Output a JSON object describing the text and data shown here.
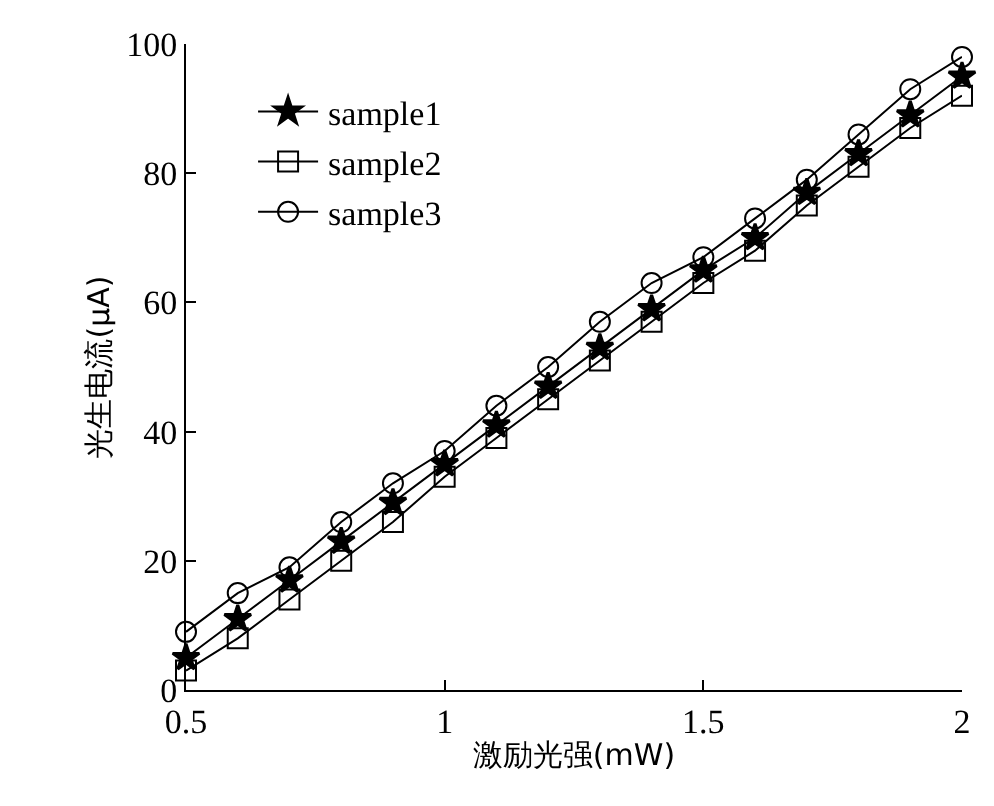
{
  "chart_data": {
    "type": "line",
    "xlabel": "激励光强(mW)",
    "ylabel": "光生电流(μA)",
    "x": [
      0.5,
      0.6,
      0.7,
      0.8,
      0.9,
      1.0,
      1.1,
      1.2,
      1.3,
      1.4,
      1.5,
      1.6,
      1.7,
      1.8,
      1.9,
      2.0
    ],
    "xlim": [
      0.5,
      2
    ],
    "xticks": [
      0.5,
      1,
      1.5,
      2
    ],
    "ylim": [
      0,
      100
    ],
    "yticks": [
      0,
      20,
      40,
      60,
      80,
      100
    ],
    "legend": "top left",
    "line_style": "solid",
    "series": [
      {
        "name": "sample1",
        "color": "#000000",
        "marker": "star",
        "values": [
          5,
          11,
          17,
          23,
          29,
          35,
          41,
          47,
          53,
          59,
          65,
          70,
          77,
          83,
          89,
          95
        ]
      },
      {
        "name": "sample2",
        "color": "#000000",
        "marker": "square",
        "values": [
          3,
          8,
          14,
          20,
          26,
          33,
          39,
          45,
          51,
          57,
          63,
          68,
          75,
          81,
          87,
          92
        ]
      },
      {
        "name": "sample3",
        "color": "#000000",
        "marker": "circle",
        "values": [
          9,
          15,
          19,
          26,
          32,
          37,
          44,
          50,
          57,
          63,
          67,
          73,
          79,
          86,
          93,
          98
        ]
      }
    ]
  }
}
